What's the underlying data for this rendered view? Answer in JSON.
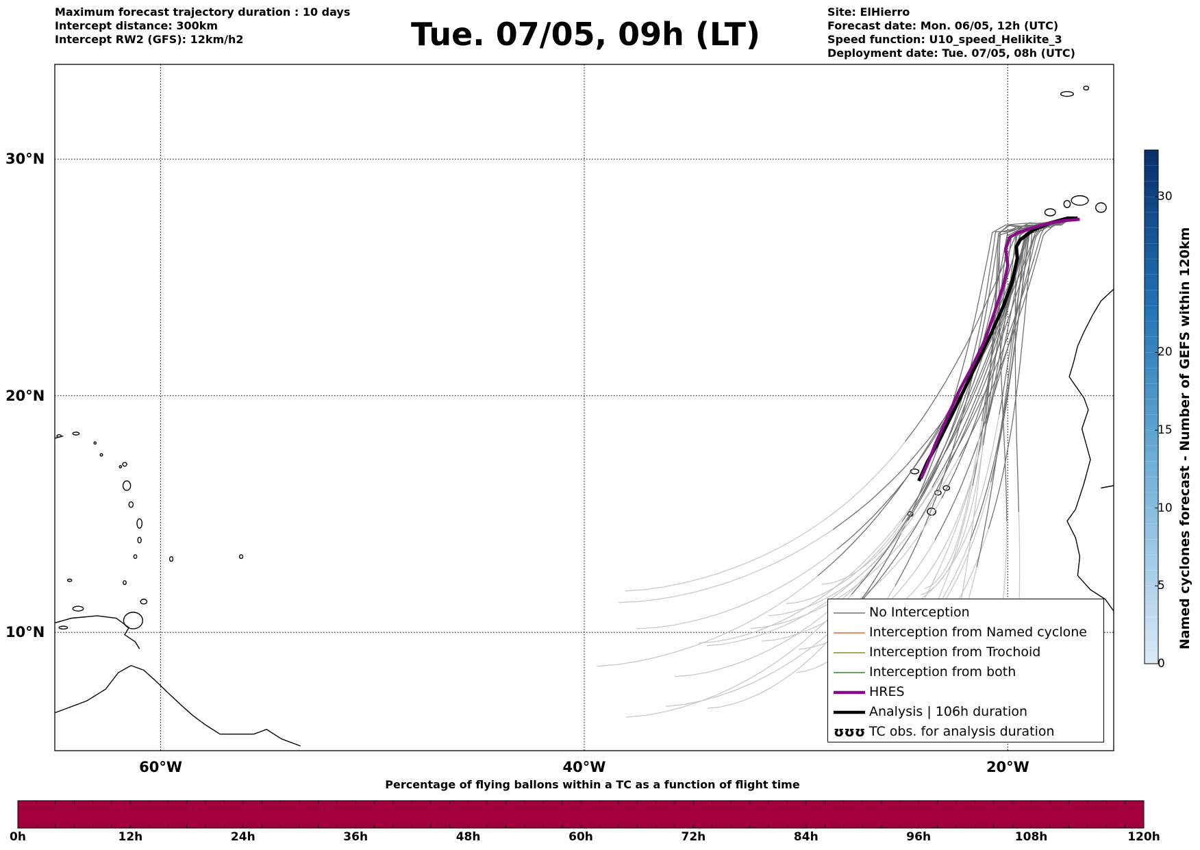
{
  "header": {
    "left_lines": [
      "Maximum forecast trajectory duration : 10 days",
      "Intercept distance: 300km",
      "Intercept RW2 (GFS):  12km/h2"
    ],
    "title": "Tue. 07/05, 09h (LT)",
    "right_lines": [
      "Site: ElHierro",
      "Forecast date: Mon. 06/05, 12h (UTC)",
      "Speed function: U10_speed_Helikite_3",
      "Deployment date: Tue. 07/05, 08h (UTC)"
    ]
  },
  "map": {
    "lon_range": [
      -65,
      -15
    ],
    "lat_range": [
      5,
      34
    ],
    "lon_labels": [
      {
        "lon": -60,
        "text": "60°W"
      },
      {
        "lon": -40,
        "text": "40°W"
      },
      {
        "lon": -20,
        "text": "20°W"
      }
    ],
    "lat_labels": [
      {
        "lat": 30,
        "text": "30°N"
      },
      {
        "lat": 20,
        "text": "20°N"
      },
      {
        "lat": 10,
        "text": "10°N"
      }
    ],
    "colors": {
      "no_interception": "#707070",
      "late_trajectory": "#c8c8c8",
      "named_cyclone": "#e8642a",
      "trochoid": "#8a8a2a",
      "both": "#2e8a2e",
      "hres": "#8b0a8b",
      "analysis": "#000000"
    },
    "analysis_track": [
      [
        -16.7,
        27.5
      ],
      [
        -17.2,
        27.5
      ],
      [
        -18.0,
        27.3
      ],
      [
        -18.8,
        27.0
      ],
      [
        -19.4,
        26.6
      ],
      [
        -19.6,
        26.3
      ],
      [
        -19.55,
        25.8
      ],
      [
        -19.8,
        24.8
      ],
      [
        -20.2,
        23.8
      ],
      [
        -20.8,
        22.6
      ],
      [
        -21.5,
        21.3
      ],
      [
        -22.2,
        20.0
      ],
      [
        -22.8,
        18.9
      ],
      [
        -23.3,
        18.0
      ],
      [
        -23.8,
        17.2
      ],
      [
        -24.2,
        16.4
      ]
    ],
    "hres_track": [
      [
        -16.6,
        27.45
      ],
      [
        -17.3,
        27.4
      ],
      [
        -18.0,
        27.3
      ],
      [
        -18.8,
        27.1
      ],
      [
        -19.5,
        26.9
      ],
      [
        -19.9,
        26.7
      ],
      [
        -20.1,
        26.2
      ],
      [
        -20.0,
        25.5
      ],
      [
        -20.2,
        24.7
      ],
      [
        -20.6,
        23.6
      ],
      [
        -21.1,
        22.3
      ],
      [
        -21.7,
        21.2
      ],
      [
        -22.3,
        20.2
      ],
      [
        -22.9,
        19.0
      ],
      [
        -23.4,
        18.0
      ],
      [
        -23.8,
        17.1
      ],
      [
        -24.1,
        16.5
      ]
    ],
    "ensemble_count": 30
  },
  "legend": {
    "items": [
      {
        "label": "No Interception",
        "style": "thin",
        "color": "#707070"
      },
      {
        "label": "Interception from Named cyclone",
        "style": "thin",
        "color": "#e8642a"
      },
      {
        "label": "Interception from Trochoid",
        "style": "thin",
        "color": "#8a8a2a"
      },
      {
        "label": "Interception from both",
        "style": "thin",
        "color": "#2e8a2e"
      },
      {
        "label": "HRES",
        "style": "thick",
        "color": "#8b0a8b"
      },
      {
        "label": "Analysis | 106h duration",
        "style": "thick",
        "color": "#000000"
      },
      {
        "label": "TC obs. for analysis duration",
        "style": "symbol",
        "color": "#000000"
      }
    ],
    "symbol_glyph": "ʊʊʊ"
  },
  "bottom_colorbar": {
    "title": "Percentage of flying ballons within a TC as a function of flight time",
    "color": "#a1003c",
    "ticks": [
      "0h",
      "12h",
      "24h",
      "36h",
      "48h",
      "60h",
      "72h",
      "84h",
      "96h",
      "108h",
      "120h"
    ]
  },
  "right_colorbar": {
    "title": "Named cyclones forecast - Number of GEFS within 120km",
    "min": 0,
    "max": 33,
    "ticks": [
      0,
      5,
      10,
      15,
      20,
      30
    ],
    "color_low": "#dbe9f6",
    "color_high": "#08306b"
  }
}
